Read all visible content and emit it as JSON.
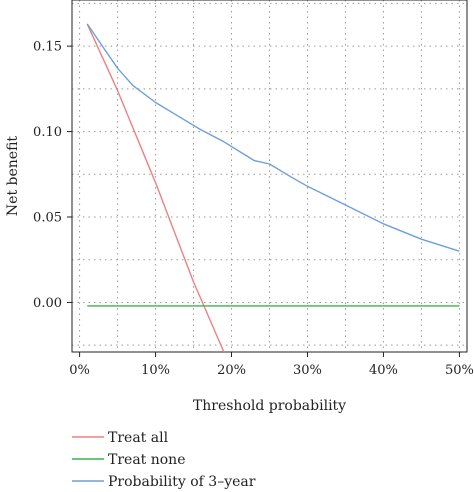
{
  "chart_data": {
    "type": "line",
    "xlabel": "Threshold probability",
    "ylabel": "Net benefit",
    "xlim": [
      -0.01,
      0.51
    ],
    "ylim": [
      -0.029,
      0.177
    ],
    "x_ticks": [
      0,
      0.1,
      0.2,
      0.3,
      0.4,
      0.5
    ],
    "x_tick_labels": [
      "0%",
      "10%",
      "20%",
      "30%",
      "40%",
      "50%"
    ],
    "y_ticks": [
      0.0,
      0.05,
      0.1,
      0.15
    ],
    "y_tick_labels": [
      "0.00",
      "0.05",
      "0.10",
      "0.15"
    ],
    "grid": "dotted",
    "legend_position": "bottom-left",
    "series": [
      {
        "name": "Treat all",
        "color": "#f08080",
        "x": [
          0.01,
          0.05,
          0.1,
          0.15,
          0.19
        ],
        "y": [
          0.163,
          0.124,
          0.07,
          0.012,
          -0.029
        ]
      },
      {
        "name": "Treat none",
        "color": "#3cb44b",
        "x": [
          0.01,
          0.5
        ],
        "y": [
          -0.002,
          -0.002
        ]
      },
      {
        "name": "Probability of 3–year",
        "color": "#6f9fd8",
        "x": [
          0.01,
          0.03,
          0.05,
          0.07,
          0.1,
          0.13,
          0.16,
          0.19,
          0.23,
          0.25,
          0.28,
          0.3,
          0.35,
          0.4,
          0.45,
          0.5
        ],
        "y": [
          0.163,
          0.15,
          0.137,
          0.127,
          0.117,
          0.109,
          0.101,
          0.094,
          0.083,
          0.081,
          0.073,
          0.068,
          0.057,
          0.046,
          0.037,
          0.03
        ]
      }
    ]
  }
}
